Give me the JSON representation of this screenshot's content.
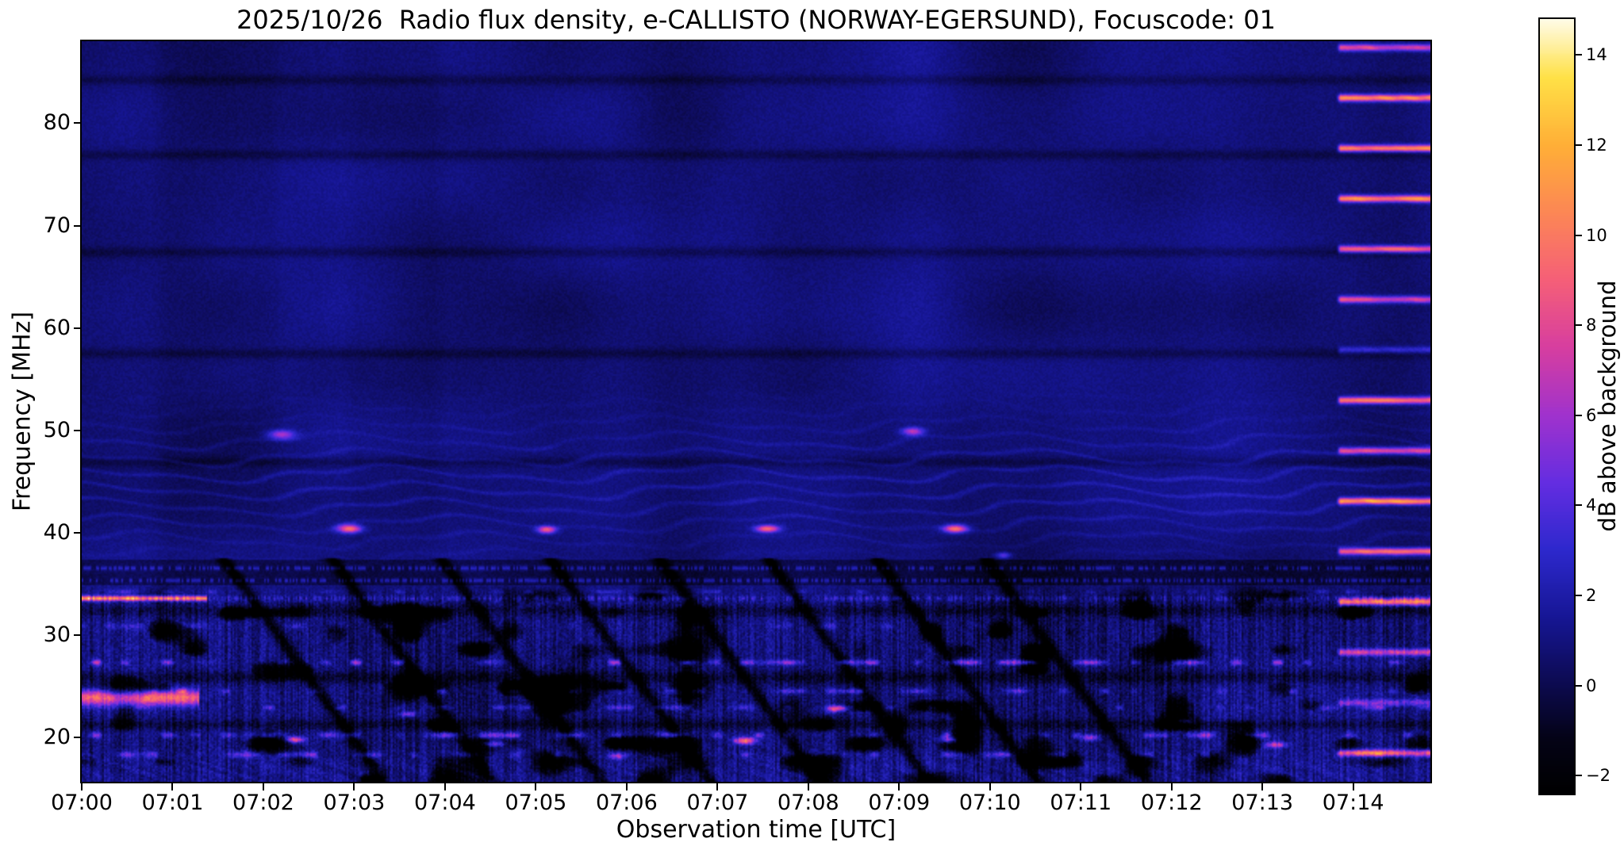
{
  "chart_data": {
    "type": "heatmap",
    "title": "2025/10/26  Radio flux density, e-CALLISTO (NORWAY-EGERSUND), Focuscode: 01",
    "xlabel": "Observation time [UTC]",
    "ylabel": "Frequency [MHz]",
    "x_tick_labels": [
      "07:00",
      "07:01",
      "07:02",
      "07:03",
      "07:04",
      "07:05",
      "07:06",
      "07:07",
      "07:08",
      "07:09",
      "07:10",
      "07:11",
      "07:12",
      "07:13",
      "07:14"
    ],
    "x_tick_minutes": [
      0,
      1,
      2,
      3,
      4,
      5,
      6,
      7,
      8,
      9,
      10,
      11,
      12,
      13,
      14
    ],
    "time_range_minutes": [
      0,
      14.85
    ],
    "freq_range_mhz": [
      15.7,
      88.0
    ],
    "y_ticks_mhz": [
      20,
      30,
      40,
      50,
      60,
      70,
      80
    ],
    "y_tick_labels": [
      "20",
      "30",
      "40",
      "50",
      "60",
      "70",
      "80"
    ],
    "grid": false,
    "colorbar": {
      "label": "dB above background",
      "ticks_db": [
        -2,
        0,
        2,
        4,
        6,
        8,
        10,
        12,
        14
      ],
      "tick_labels": [
        "−2",
        "0",
        "2",
        "4",
        "6",
        "8",
        "10",
        "12",
        "14"
      ],
      "range_db": [
        -2.4,
        14.8
      ],
      "position": "right"
    },
    "colormap_stops": [
      [
        -2.4,
        0,
        0,
        0
      ],
      [
        -1.2,
        4,
        3,
        22
      ],
      [
        0,
        12,
        10,
        78
      ],
      [
        1.5,
        22,
        22,
        148
      ],
      [
        3,
        45,
        40,
        205
      ],
      [
        4.5,
        100,
        45,
        225
      ],
      [
        6,
        160,
        50,
        205
      ],
      [
        7.5,
        215,
        62,
        160
      ],
      [
        9,
        245,
        95,
        120
      ],
      [
        10.5,
        252,
        135,
        85
      ],
      [
        12,
        255,
        175,
        55
      ],
      [
        13.5,
        255,
        225,
        70
      ],
      [
        14.8,
        255,
        252,
        235
      ]
    ],
    "features": {
      "background_level_db": 0.9,
      "smooth_variation_db": 0.55,
      "fine_noise_db": 0.33,
      "lower_noise_boost": 1.6,
      "lower_region_top_mhz": 35.2,
      "vertical_striation_db": 0.9,
      "dark_blotch": {
        "threshold": 0.38,
        "gain": 16
      },
      "dark_freq_lines": [
        {
          "f": 84.2,
          "depth": 0.9,
          "sigma": 0.5
        },
        {
          "f": 76.9,
          "depth": 0.95,
          "sigma": 0.5
        },
        {
          "f": 67.4,
          "depth": 0.95,
          "sigma": 0.5
        },
        {
          "f": 57.5,
          "depth": 0.95,
          "sigma": 0.5
        },
        {
          "f": 46.9,
          "depth": 0.9,
          "sigma": 0.5
        },
        {
          "f": 32.4,
          "depth": 1.4,
          "sigma": 0.55
        },
        {
          "f": 25.9,
          "depth": 1.6,
          "sigma": 0.6
        },
        {
          "f": 21.3,
          "depth": 1.4,
          "sigma": 0.5
        }
      ],
      "dark_time_columns_min": [
        [
          0.85,
          2.15
        ],
        [
          2.95,
          3.95
        ]
      ],
      "dark_time_column_depth_db": 0.3,
      "fringes": {
        "band_mhz": [
          36,
          54
        ],
        "center_mhz": 44.5,
        "env_sigma_mhz": 6.5,
        "spacing_mhz": 1.62,
        "amp_db": 1.3
      },
      "bright_blobs": [
        [
          2.95,
          40.4,
          9,
          0.13,
          0.4
        ],
        [
          5.12,
          40.3,
          8,
          0.1,
          0.35
        ],
        [
          7.55,
          40.4,
          8.5,
          0.13,
          0.35
        ],
        [
          9.62,
          40.4,
          9,
          0.13,
          0.4
        ],
        [
          2.2,
          49.6,
          5.5,
          0.15,
          0.45
        ],
        [
          9.15,
          49.9,
          6,
          0.12,
          0.4
        ],
        [
          2.35,
          19.8,
          8,
          0.1,
          0.3
        ],
        [
          4.55,
          19.4,
          6,
          0.12,
          0.3
        ],
        [
          7.3,
          19.7,
          9,
          0.12,
          0.35
        ],
        [
          8.3,
          22.8,
          7,
          0.1,
          0.3
        ],
        [
          9.55,
          19.8,
          6,
          0.1,
          0.3
        ],
        [
          11.1,
          20.0,
          5,
          0.1,
          0.3
        ],
        [
          13.15,
          19.3,
          6,
          0.12,
          0.3
        ],
        [
          5.9,
          18.2,
          5,
          0.1,
          0.3
        ],
        [
          3.6,
          22.3,
          5,
          0.1,
          0.25
        ],
        [
          12.15,
          21.6,
          4,
          0.1,
          0.25
        ],
        [
          10.15,
          37.8,
          4,
          0.08,
          0.3
        ]
      ],
      "cal_line": {
        "freq_mhz": 33.6,
        "end_min": 1.38,
        "amp_db": 10,
        "sigma_mhz": 0.24,
        "tail_amp_db": 2.2
      },
      "start_burst": {
        "freq_mhz": 23.9,
        "end_min": 1.3,
        "amp_db": 8.5,
        "sigma_mhz": 0.75
      },
      "dotted_band": {
        "range_mhz": [
          34.85,
          37.3
        ],
        "depth_db": 1.2,
        "dot_rows_mhz": [
          35.35,
          36.55
        ],
        "dot_amp_db": 2.6
      },
      "noisy_rows": [
        {
          "f": 27.35,
          "amp": 6.5,
          "sigma": 0.26,
          "thr": 0.52,
          "seed": 17
        },
        {
          "f": 24.55,
          "amp": 4.0,
          "sigma": 0.24,
          "thr": 0.6,
          "seed": 29
        },
        {
          "f": 22.95,
          "amp": 3.5,
          "sigma": 0.24,
          "thr": 0.62,
          "seed": 41
        },
        {
          "f": 20.25,
          "amp": 5.0,
          "sigma": 0.28,
          "thr": 0.55,
          "seed": 53
        },
        {
          "f": 18.35,
          "amp": 4.5,
          "sigma": 0.3,
          "thr": 0.58,
          "seed": 67
        },
        {
          "f": 30.9,
          "amp": 2.2,
          "sigma": 0.3,
          "thr": 0.66,
          "seed": 79
        },
        {
          "f": 34.25,
          "amp": 2.5,
          "sigma": 0.2,
          "thr": 0.5,
          "seed": 91
        }
      ],
      "diagonal_sweeps": {
        "start_times_min": [
          1.55,
          2.75,
          3.95,
          5.15,
          6.35,
          7.55,
          8.75,
          9.95
        ],
        "top_freq_mhz": 37.6,
        "rate_mhz_per_min": 12.3,
        "depth_db": 3.0,
        "half_width_min": 0.075
      },
      "rfi_comb": {
        "start_min": 13.82,
        "base_freq_mhz": 18.5,
        "spacing_mhz": 4.92,
        "sigma_mhz": 0.33,
        "amps_db": [
          9,
          4,
          7,
          10,
          9,
          10,
          7,
          9,
          3,
          7,
          9,
          10,
          10,
          10,
          7
        ]
      }
    }
  }
}
